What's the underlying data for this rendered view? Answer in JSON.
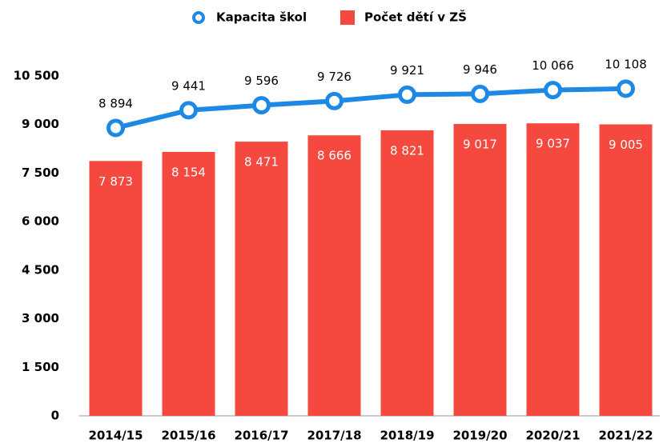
{
  "chart_data": {
    "type": "bar",
    "categories": [
      "2014/15",
      "2015/16",
      "2016/17",
      "2017/18",
      "2018/19",
      "2019/20",
      "2020/21",
      "2021/22"
    ],
    "series": [
      {
        "name": "Kapacita škol",
        "type": "line",
        "color": "#1e88e5",
        "values": [
          8894,
          9441,
          9596,
          9726,
          9921,
          9946,
          10066,
          10108
        ],
        "value_labels": [
          "8 894",
          "9 441",
          "9 596",
          "9 726",
          "9 921",
          "9 946",
          "10 066",
          "10 108"
        ]
      },
      {
        "name": "Počet dětí v ZŠ",
        "type": "bar",
        "color": "#f5493f",
        "values": [
          7873,
          8154,
          8471,
          8666,
          8821,
          9017,
          9037,
          9005
        ],
        "value_labels": [
          "7 873",
          "8 154",
          "8 471",
          "8 666",
          "8 821",
          "9 017",
          "9 037",
          "9 005"
        ]
      }
    ],
    "ylim": [
      0,
      10500
    ],
    "yticks": [
      0,
      {
        "value": 1500,
        "label": "1 500"
      },
      {
        "value": 3000,
        "label": "3 000"
      },
      {
        "value": 4500,
        "label": "4 500"
      },
      {
        "value": 6000,
        "label": "6 000"
      },
      {
        "value": 7500,
        "label": "7 500"
      },
      {
        "value": 9000,
        "label": "9 000"
      },
      {
        "value": 10500,
        "label": "10 500"
      }
    ],
    "legend": "top"
  }
}
